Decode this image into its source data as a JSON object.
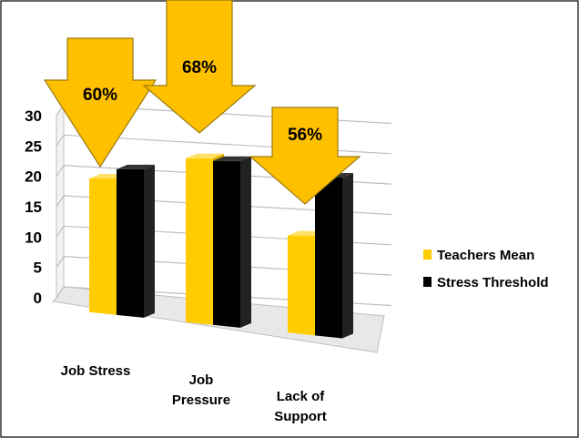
{
  "chart_data": {
    "type": "bar",
    "categories": [
      [
        "Job Stress"
      ],
      [
        "Job",
        "Pressure"
      ],
      [
        "Lack of",
        "Support"
      ]
    ],
    "series": [
      {
        "name": "Teachers Mean",
        "values": [
          22,
          27,
          16
        ]
      },
      {
        "name": "Stress Threshold",
        "values": [
          24,
          27,
          26
        ]
      }
    ],
    "annotations": [
      "60%",
      "68%",
      "56%"
    ],
    "yticks": [
      "0",
      "5",
      "10",
      "15",
      "20",
      "25",
      "30"
    ],
    "ylim": [
      0,
      30
    ],
    "grid": true,
    "legend": "right",
    "colors": {
      "series1": "#FFCC00",
      "series2": "#000000",
      "arrow": "#FFC000",
      "arrow_stroke": "#9A7A10",
      "grid": "#BFBFBF",
      "floor": "#E8E8E8"
    }
  }
}
